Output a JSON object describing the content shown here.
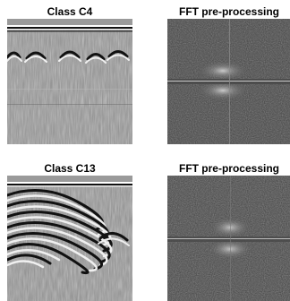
{
  "panels": [
    {
      "title": "Class C4",
      "kind": "radargram-c4"
    },
    {
      "title": "FFT pre-processing",
      "kind": "fft-c4"
    },
    {
      "title": "Class C13",
      "kind": "radargram-c13"
    },
    {
      "title": "FFT pre-processing",
      "kind": "fft-c13"
    }
  ]
}
